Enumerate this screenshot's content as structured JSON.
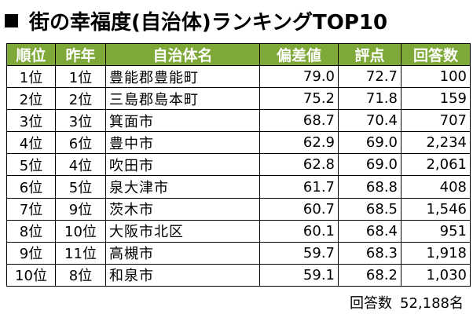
{
  "title": "街の幸福度(自治体)ランキングTOP10",
  "columns": [
    "順位",
    "昨年",
    "自治体名",
    "偏差値",
    "評点",
    "回答数"
  ],
  "rows": [
    [
      "1位",
      "1位",
      "豊能郡豊能町",
      "79.0",
      "72.7",
      "100"
    ],
    [
      "2位",
      "2位",
      "三島郡島本町",
      "75.2",
      "71.8",
      "159"
    ],
    [
      "3位",
      "3位",
      "箕面市",
      "68.7",
      "70.4",
      "707"
    ],
    [
      "4位",
      "6位",
      "豊中市",
      "62.9",
      "69.0",
      "2,234"
    ],
    [
      "5位",
      "4位",
      "吹田市",
      "62.8",
      "69.0",
      "2,061"
    ],
    [
      "6位",
      "5位",
      "泉大津市",
      "61.7",
      "68.8",
      "408"
    ],
    [
      "7位",
      "9位",
      "茨木市",
      "60.7",
      "68.5",
      "1,546"
    ],
    [
      "8位",
      "10位",
      "大阪市北区",
      "60.1",
      "68.4",
      "951"
    ],
    [
      "9位",
      "11位",
      "高槻市",
      "59.7",
      "68.3",
      "1,918"
    ],
    [
      "10位",
      "8位",
      "和泉市",
      "59.1",
      "68.2",
      "1,030"
    ]
  ],
  "footer": {
    "label": "回答数",
    "value": "52,188名"
  },
  "colors": {
    "header_bg": "#7ea838",
    "header_text": "#ffffff",
    "border": "#000000"
  }
}
